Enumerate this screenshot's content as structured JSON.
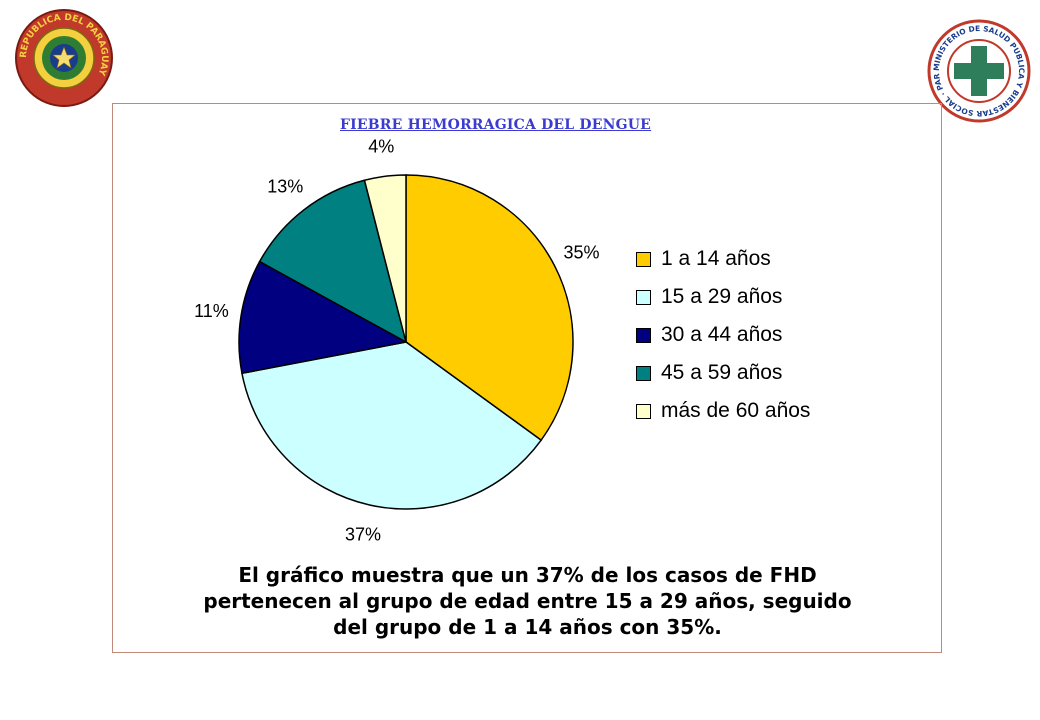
{
  "logos": {
    "left": {
      "text": "REPUBLICA DEL PARAGUAY"
    },
    "right": {
      "text": "MINISTERIO DE SALUD PUBLICA Y BIENESTAR SOCIAL · PARAGUAY ·"
    }
  },
  "chart_data": {
    "type": "pie",
    "title": "FIEBRE HEMORRAGICA DEL DENGUE",
    "legend_position": "right",
    "slices": [
      {
        "label": "1 a 14 años",
        "value": 35,
        "pct_label": "35%",
        "color": "#FFCC00"
      },
      {
        "label": "15 a 29 años",
        "value": 37,
        "pct_label": "37%",
        "color": "#CCFFFF"
      },
      {
        "label": "30 a 44 años",
        "value": 11,
        "pct_label": "11%",
        "color": "#000080"
      },
      {
        "label": "45 a 59 años",
        "value": 13,
        "pct_label": "13%",
        "color": "#008080"
      },
      {
        "label": "más de 60 años",
        "value": 4,
        "pct_label": "4%",
        "color": "#FFFFCC"
      }
    ]
  },
  "caption": {
    "line1": "El gráfico muestra que un 37% de los casos de FHD",
    "line2": "pertenecen al grupo de edad entre 15 a 29 años, seguido",
    "line3": "del grupo de 1 a 14 años con 35%."
  }
}
